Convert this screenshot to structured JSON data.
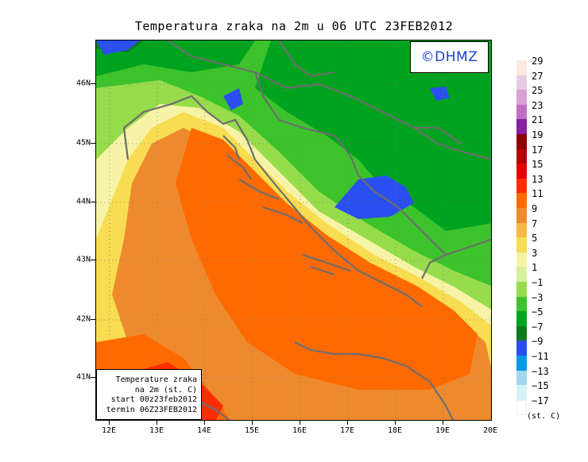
{
  "title": "Temperatura zraka na 2m u 06 UTC 23FEB2012",
  "logo_text": "©DHMZ",
  "info_box": {
    "line1": "Temperature zraka",
    "line2": "na 2m (st. C)",
    "line3": "start 00z23feb2012",
    "line4": "termin 06Z23FEB2012"
  },
  "lat_labels": [
    "46N",
    "45N",
    "44N",
    "43N",
    "42N",
    "41N"
  ],
  "lon_labels": [
    "12E",
    "13E",
    "14E",
    "15E",
    "16E",
    "17E",
    "18E",
    "19E",
    "20E"
  ],
  "legend": {
    "labels": [
      "29",
      "27",
      "25",
      "23",
      "21",
      "19",
      "17",
      "15",
      "13",
      "11",
      "9",
      "7",
      "5",
      "3",
      "1",
      "−1",
      "−3",
      "−5",
      "−7",
      "−9",
      "−11",
      "−13",
      "−15",
      "−17"
    ],
    "colors": [
      "#fbe9dd",
      "#e8cce3",
      "#d8a2d6",
      "#c06fc6",
      "#8a1fa0",
      "#8e0000",
      "#b20000",
      "#e60000",
      "#fe2d00",
      "#ff6a00",
      "#ee8a2e",
      "#f5b847",
      "#f8dd52",
      "#f6f3a6",
      "#d6f0a0",
      "#97dc4b",
      "#3cc32b",
      "#00a31f",
      "#0f7a1b",
      "#2a4ff0",
      "#0a98e4",
      "#a2d8ee",
      "#d6f2f6",
      "#ffffff"
    ],
    "unit": "(st. C)"
  },
  "colors": {
    "sea_warm": "#ff6a00",
    "sea_orange": "#ee8a2e",
    "coast_yellow": "#f8dd52",
    "land_green": "#3cc32b",
    "land_dark": "#00a31f",
    "cold_blue": "#2a4ff0",
    "coastline": "#6e6e6e",
    "grid": "#777777"
  }
}
